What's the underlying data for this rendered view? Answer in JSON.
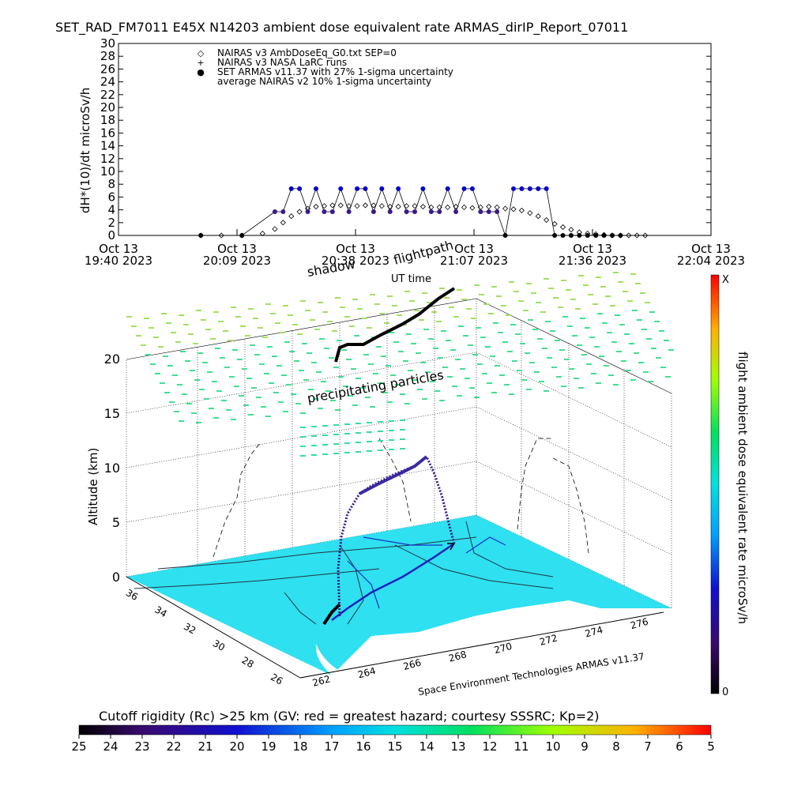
{
  "header": {
    "title": "SET_RAD_FM7011  E45X N14203 ambient dose equivalent rate ARMAS_dirIP_Report_07011"
  },
  "timeseries": {
    "ylabel": "dH*(10)/dt microSv/h",
    "xlabel": "UT time",
    "legend": [
      {
        "symbol": "◇",
        "label": "NAIRAS v3 AmbDoseEq_G0.txt SEP=0"
      },
      {
        "symbol": "+",
        "label": "NAIRAS v3 NASA LaRC runs"
      },
      {
        "symbol": "●",
        "label": "SET ARMAS v11.37 with 27% 1-sigma uncertainty"
      },
      {
        "symbol": "",
        "label": "average NAIRAS v2 10% 1-sigma uncertainty"
      }
    ],
    "xticks": [
      {
        "top": "Oct 13",
        "bottom": "19:40 2023"
      },
      {
        "top": "Oct 13",
        "bottom": "20:09 2023"
      },
      {
        "top": "Oct 13",
        "bottom": "20:38 2023"
      },
      {
        "top": "Oct 13",
        "bottom": "21:07 2023"
      },
      {
        "top": "Oct 13",
        "bottom": "21:36 2023"
      },
      {
        "top": "Oct 13",
        "bottom": "22:04 2023"
      }
    ]
  },
  "scene3d": {
    "zlabel": "Altitude (km)",
    "annotation_flightpath": "flightpath",
    "annotation_shadow": "shadow",
    "annotation_particles": "precipitating particles",
    "credit": "Space Environment Technologies ARMAS v11.37",
    "zticks": [
      "0",
      "5",
      "10",
      "15",
      "20"
    ],
    "lon_ticks": [
      "262",
      "264",
      "266",
      "268",
      "270",
      "272",
      "274",
      "276"
    ],
    "lat_ticks": [
      "26",
      "28",
      "30",
      "32",
      "34",
      "36"
    ]
  },
  "colorbar_right": {
    "label": "flight ambient dose equivalent rate microSv/h",
    "top": "X",
    "bottom": "0"
  },
  "colorbar_bottom": {
    "label": "Cutoff rigidity (Rc) >25 km (GV: red = greatest hazard; courtesy SSSRC; Kp=2)",
    "ticks": [
      "25",
      "24",
      "23",
      "22",
      "21",
      "20",
      "19",
      "18",
      "17",
      "16",
      "15",
      "14",
      "13",
      "12",
      "11",
      "10",
      "9",
      "8",
      "7",
      "6",
      "5"
    ]
  },
  "colors": {
    "armas": "#0000cc",
    "armas_low": "#3a1a8a",
    "grid_green": "#8fe040",
    "cyan_map": "#2ee0f0"
  },
  "chart_data": [
    {
      "type": "scatter",
      "title": "SET_RAD_FM7011  E45X N14203 ambient dose equivalent rate ARMAS_dirIP_Report_07011",
      "xlabel": "UT time",
      "ylabel": "dH*(10)/dt microSv/h",
      "ylim": [
        0,
        30
      ],
      "xlim_minutes_after_1940": [
        0,
        144
      ],
      "x_tick_labels": [
        "Oct 13 19:40 2023",
        "Oct 13 20:09 2023",
        "Oct 13 20:38 2023",
        "Oct 13 21:07 2023",
        "Oct 13 21:36 2023",
        "Oct 13 22:04 2023"
      ],
      "series": [
        {
          "name": "NAIRAS v3 AmbDoseEq_G0.txt SEP=0",
          "x": [
            20,
            25,
            30,
            35,
            38,
            40,
            42,
            44,
            46,
            48,
            50,
            52,
            54,
            56,
            58,
            60,
            62,
            64,
            66,
            68,
            70,
            72,
            74,
            76,
            78,
            80,
            82,
            84,
            86,
            88,
            90,
            92,
            94,
            96,
            98,
            100,
            102,
            104,
            106,
            108,
            110,
            112,
            114,
            116,
            118,
            120,
            122,
            124,
            126,
            128
          ],
          "y": [
            0.0,
            0.0,
            0.0,
            0.3,
            1.0,
            2.0,
            3.0,
            3.7,
            4.2,
            4.5,
            4.6,
            4.7,
            4.7,
            4.6,
            4.6,
            4.7,
            4.7,
            4.6,
            4.5,
            4.5,
            4.6,
            4.6,
            4.5,
            4.4,
            4.4,
            4.4,
            4.5,
            4.4,
            4.3,
            4.4,
            4.5,
            4.4,
            4.2,
            4.1,
            3.9,
            3.5,
            3.0,
            2.4,
            1.8,
            1.3,
            0.9,
            0.5,
            0.3,
            0.2,
            0.1,
            0.0,
            0.0,
            0.0,
            0.0,
            0.0
          ]
        },
        {
          "name": "SET ARMAS v11.37 with 27% 1-sigma uncertainty",
          "x": [
            20,
            30,
            38,
            40,
            42,
            44,
            46,
            48,
            50,
            52,
            54,
            56,
            58,
            60,
            62,
            64,
            66,
            68,
            70,
            72,
            74,
            76,
            78,
            80,
            82,
            84,
            86,
            88,
            90,
            92,
            94,
            96,
            98,
            100,
            102,
            104,
            106,
            108,
            110,
            112,
            114,
            116,
            118,
            120,
            122
          ],
          "y": [
            0.0,
            0.0,
            3.7,
            3.7,
            7.3,
            7.3,
            3.7,
            7.3,
            3.7,
            3.7,
            7.3,
            3.7,
            7.3,
            7.3,
            3.7,
            7.3,
            3.7,
            7.3,
            3.7,
            3.7,
            7.3,
            3.7,
            3.7,
            7.3,
            3.7,
            7.3,
            7.3,
            3.7,
            3.7,
            3.7,
            0.0,
            7.3,
            7.3,
            7.3,
            7.3,
            7.3,
            0.0,
            0.0,
            0.0,
            0.0,
            0.0,
            0.0,
            0.0,
            0.0,
            0.0
          ]
        }
      ]
    }
  ]
}
